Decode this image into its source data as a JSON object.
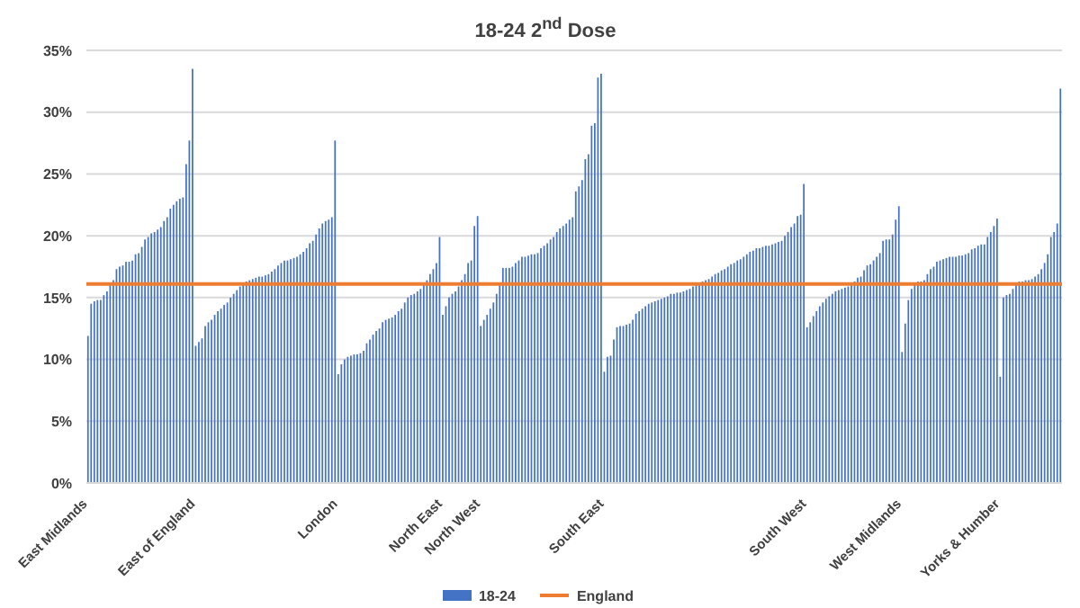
{
  "chart_data": {
    "type": "bar",
    "title": "18-24 2$^{nd}$ Dose",
    "categories": [
      "East Midlands",
      null,
      null,
      null,
      null,
      null,
      null,
      null,
      null,
      null,
      null,
      null,
      null,
      null,
      null,
      null,
      null,
      null,
      null,
      null,
      null,
      null,
      null,
      null,
      null,
      null,
      null,
      null,
      null,
      null,
      null,
      null,
      null,
      null,
      "East of England",
      null,
      null,
      null,
      null,
      null,
      null,
      null,
      null,
      null,
      null,
      null,
      null,
      null,
      null,
      null,
      null,
      null,
      null,
      null,
      null,
      null,
      null,
      null,
      null,
      null,
      null,
      null,
      null,
      null,
      null,
      null,
      null,
      null,
      null,
      null,
      null,
      null,
      null,
      null,
      null,
      null,
      null,
      null,
      null,
      "London",
      null,
      null,
      null,
      null,
      null,
      null,
      null,
      null,
      null,
      null,
      null,
      null,
      null,
      null,
      null,
      null,
      null,
      null,
      null,
      null,
      null,
      null,
      null,
      null,
      null,
      null,
      null,
      null,
      null,
      null,
      null,
      null,
      "North East",
      null,
      null,
      null,
      null,
      null,
      null,
      null,
      null,
      null,
      null,
      null,
      "North West",
      null,
      null,
      null,
      null,
      null,
      null,
      null,
      null,
      null,
      null,
      null,
      null,
      null,
      null,
      null,
      null,
      null,
      null,
      null,
      null,
      null,
      null,
      null,
      null,
      null,
      null,
      null,
      null,
      null,
      null,
      null,
      null,
      null,
      null,
      null,
      null,
      null,
      null,
      "South East",
      null,
      null,
      null,
      null,
      null,
      null,
      null,
      null,
      null,
      null,
      null,
      null,
      null,
      null,
      null,
      null,
      null,
      null,
      null,
      null,
      null,
      null,
      null,
      null,
      null,
      null,
      null,
      null,
      null,
      null,
      null,
      null,
      null,
      null,
      null,
      null,
      null,
      null,
      null,
      null,
      null,
      null,
      null,
      null,
      null,
      null,
      null,
      null,
      null,
      null,
      null,
      null,
      null,
      null,
      null,
      null,
      null,
      null,
      null,
      null,
      null,
      null,
      null,
      "South West",
      null,
      null,
      null,
      null,
      null,
      null,
      null,
      null,
      null,
      null,
      null,
      null,
      null,
      null,
      null,
      null,
      null,
      null,
      null,
      null,
      null,
      null,
      null,
      null,
      null,
      null,
      null,
      null,
      null,
      "West Midlands",
      null,
      null,
      null,
      null,
      null,
      null,
      null,
      null,
      null,
      null,
      null,
      null,
      null,
      null,
      null,
      null,
      null,
      null,
      null,
      null,
      null,
      null,
      null,
      null,
      null,
      null,
      null,
      null,
      null,
      null,
      "Yorks & Humber",
      null,
      null,
      null,
      null,
      null,
      null,
      null,
      null,
      null,
      null,
      null,
      null,
      null,
      null,
      null,
      null,
      null,
      null,
      null
    ],
    "series": [
      {
        "name": "18-24",
        "color": "#4472c4",
        "values": [
          11.9,
          14.5,
          14.7,
          14.8,
          14.8,
          15.2,
          15.5,
          16.2,
          16.4,
          17.3,
          17.5,
          17.6,
          17.9,
          17.9,
          18.0,
          18.5,
          18.6,
          19.1,
          19.7,
          19.9,
          20.2,
          20.3,
          20.5,
          20.7,
          21.2,
          21.5,
          22.2,
          22.5,
          22.8,
          23.0,
          23.1,
          25.8,
          27.7,
          33.5,
          11.1,
          11.4,
          11.7,
          12.7,
          13.0,
          13.2,
          13.6,
          13.9,
          14.1,
          14.4,
          14.6,
          15.0,
          15.3,
          15.6,
          15.9,
          16.1,
          16.3,
          16.4,
          16.5,
          16.6,
          16.7,
          16.7,
          16.8,
          16.9,
          17.1,
          17.3,
          17.6,
          17.8,
          18.0,
          18.0,
          18.1,
          18.2,
          18.3,
          18.5,
          18.7,
          19.0,
          19.4,
          19.6,
          20.1,
          20.6,
          21.0,
          21.2,
          21.3,
          21.5,
          27.7,
          8.8,
          9.6,
          10.0,
          10.2,
          10.3,
          10.4,
          10.4,
          10.5,
          10.7,
          11.3,
          11.6,
          12.0,
          12.3,
          12.5,
          13.0,
          13.2,
          13.3,
          13.4,
          13.6,
          13.9,
          14.1,
          14.6,
          15.0,
          15.2,
          15.3,
          15.5,
          15.7,
          16.1,
          16.4,
          16.9,
          17.3,
          17.8,
          19.9,
          13.6,
          14.3,
          15.0,
          15.3,
          15.5,
          15.9,
          16.4,
          16.9,
          17.8,
          18.0,
          20.8,
          21.6,
          12.7,
          13.2,
          13.6,
          14.1,
          14.6,
          15.3,
          16.0,
          17.4,
          17.4,
          17.4,
          17.5,
          17.8,
          18.0,
          18.3,
          18.3,
          18.4,
          18.5,
          18.5,
          18.6,
          19.0,
          19.2,
          19.4,
          19.7,
          19.9,
          20.3,
          20.6,
          20.8,
          21.0,
          21.3,
          21.5,
          23.6,
          24.0,
          24.5,
          26.2,
          26.6,
          28.9,
          29.1,
          32.8,
          33.1,
          9.0,
          10.2,
          10.3,
          11.6,
          12.6,
          12.7,
          12.7,
          12.8,
          12.9,
          13.2,
          13.7,
          13.9,
          14.1,
          14.3,
          14.5,
          14.6,
          14.7,
          14.8,
          14.9,
          15.0,
          15.1,
          15.3,
          15.3,
          15.4,
          15.4,
          15.5,
          15.6,
          15.7,
          15.9,
          16.0,
          16.2,
          16.3,
          16.4,
          16.5,
          16.7,
          16.9,
          17.0,
          17.2,
          17.3,
          17.5,
          17.7,
          17.8,
          18.0,
          18.1,
          18.3,
          18.5,
          18.7,
          18.8,
          19.0,
          19.0,
          19.1,
          19.2,
          19.2,
          19.3,
          19.4,
          19.5,
          19.6,
          20.0,
          20.3,
          20.7,
          21.0,
          21.6,
          21.7,
          24.2,
          12.6,
          13.0,
          13.5,
          13.9,
          14.3,
          14.6,
          14.9,
          15.1,
          15.3,
          15.5,
          15.6,
          15.7,
          15.8,
          15.9,
          16.0,
          16.3,
          16.6,
          16.7,
          17.2,
          17.6,
          17.7,
          18.0,
          18.3,
          18.6,
          19.6,
          19.7,
          19.7,
          20.1,
          21.3,
          22.4,
          10.6,
          12.9,
          14.8,
          15.7,
          16.2,
          16.3,
          16.3,
          16.4,
          16.9,
          17.3,
          17.5,
          17.9,
          18.0,
          18.1,
          18.2,
          18.3,
          18.3,
          18.3,
          18.4,
          18.4,
          18.5,
          18.6,
          18.9,
          19.0,
          19.2,
          19.3,
          19.3,
          19.9,
          20.3,
          20.8,
          21.4,
          8.6,
          15.0,
          15.2,
          15.3,
          15.7,
          16.0,
          16.3,
          16.3,
          16.4,
          16.4,
          16.5,
          16.7,
          16.9,
          17.3,
          17.8,
          18.5,
          19.9,
          20.3,
          21.0,
          31.9
        ]
      }
    ],
    "ref_lines": [
      {
        "axis": "y",
        "value": 16.1,
        "label": "England",
        "color": "#ed7d31"
      }
    ],
    "ylim": [
      0,
      35
    ],
    "yticks": [
      {
        "value": 0,
        "label": "0%"
      },
      {
        "value": 5,
        "label": "5%"
      },
      {
        "value": 10,
        "label": "10%"
      },
      {
        "value": 15,
        "label": "15%"
      },
      {
        "value": 20,
        "label": "20%"
      },
      {
        "value": 25,
        "label": "25%"
      },
      {
        "value": 30,
        "label": "30%"
      },
      {
        "value": 35,
        "label": "35%"
      }
    ],
    "grid": "y",
    "legend": "bottom"
  }
}
